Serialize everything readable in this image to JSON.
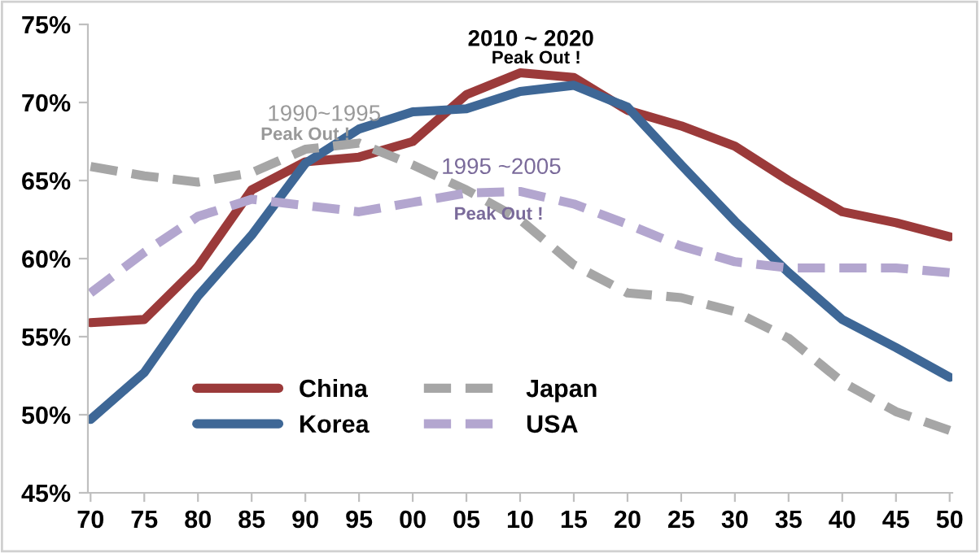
{
  "chart_data": {
    "type": "line",
    "categories": [
      "70",
      "75",
      "80",
      "85",
      "90",
      "95",
      "00",
      "05",
      "10",
      "15",
      "20",
      "25",
      "30",
      "35",
      "40",
      "45",
      "50"
    ],
    "ylim": [
      45,
      75
    ],
    "yticks": [
      {
        "value": 45,
        "label": "45%"
      },
      {
        "value": 50,
        "label": "50%"
      },
      {
        "value": 55,
        "label": "55%"
      },
      {
        "value": 60,
        "label": "60%"
      },
      {
        "value": 65,
        "label": "65%"
      },
      {
        "value": 70,
        "label": "70%"
      },
      {
        "value": 75,
        "label": "75%"
      }
    ],
    "series": [
      {
        "name": "China",
        "color": "#9b3a3a",
        "line_style": "solid",
        "values": [
          55.9,
          56.1,
          59.5,
          64.4,
          66.2,
          66.5,
          67.5,
          70.5,
          71.9,
          71.6,
          69.5,
          68.5,
          67.2,
          65.0,
          63.0,
          62.3,
          61.4
        ]
      },
      {
        "name": "Korea",
        "color": "#3e6796",
        "line_style": "solid",
        "values": [
          49.7,
          52.7,
          57.6,
          61.5,
          66.1,
          68.3,
          69.4,
          69.6,
          70.7,
          71.1,
          69.7,
          66.0,
          62.4,
          59.1,
          56.1,
          54.3,
          52.4
        ]
      },
      {
        "name": "Japan",
        "color": "#a6a6a6",
        "line_style": "dashed",
        "values": [
          65.9,
          65.3,
          64.9,
          65.5,
          67.0,
          67.4,
          66.0,
          64.4,
          62.5,
          59.6,
          57.8,
          57.5,
          56.6,
          54.9,
          52.1,
          50.2,
          49.0
        ]
      },
      {
        "name": "USA",
        "color": "#b3a6cf",
        "line_style": "dashed",
        "values": [
          57.8,
          60.4,
          62.7,
          63.8,
          63.4,
          63.0,
          63.6,
          64.2,
          64.3,
          63.5,
          62.2,
          60.8,
          59.8,
          59.4,
          59.4,
          59.4,
          59.1
        ]
      }
    ],
    "annotations": [
      "2010 ~ 2020",
      "Peak Out !",
      "1990~1995",
      "Peak Out !",
      "1995 ~2005",
      "Peak Out !"
    ],
    "legend": "bottom left",
    "grid": false,
    "marker": "none"
  }
}
